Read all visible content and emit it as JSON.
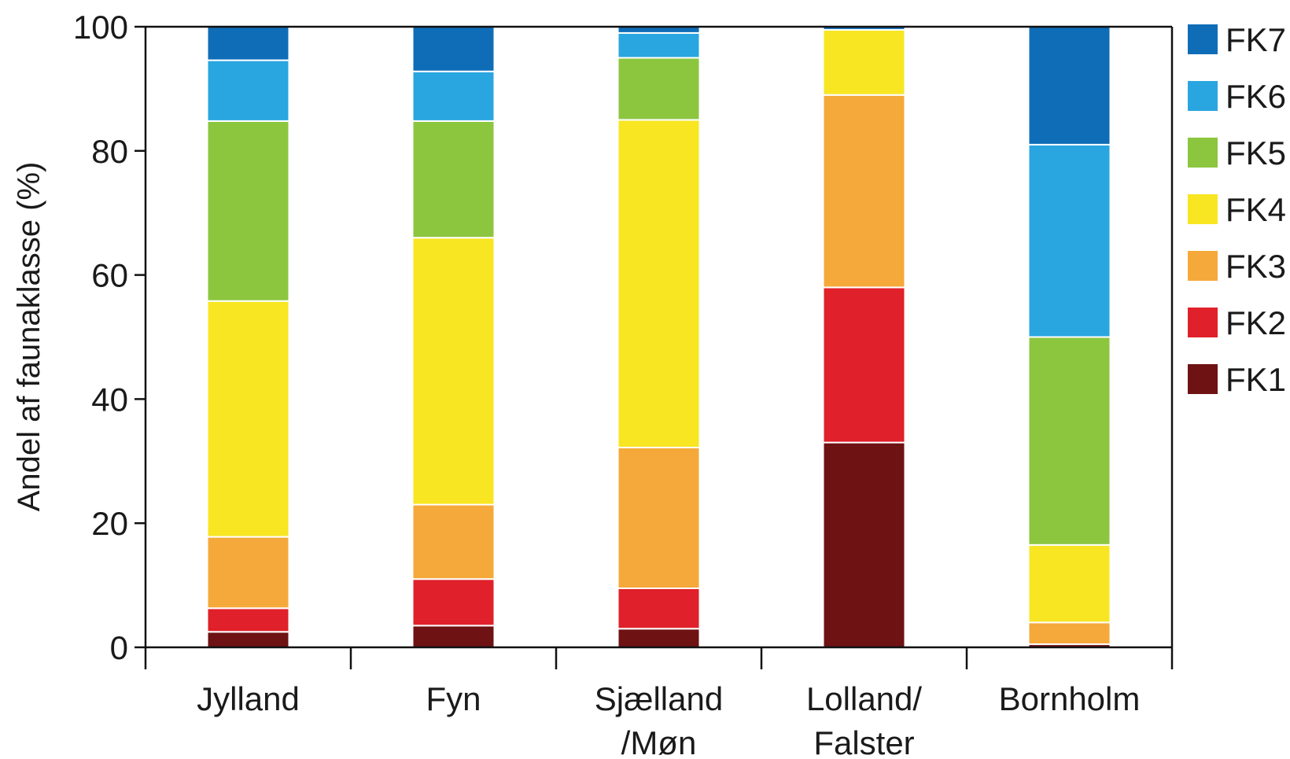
{
  "chart_data": {
    "type": "bar",
    "stacked": true,
    "title": "",
    "xlabel": "",
    "ylabel": "Andel af faunaklasse (%)",
    "ylim": [
      0,
      100
    ],
    "yticks": [
      0,
      20,
      40,
      60,
      80,
      100
    ],
    "grid": false,
    "legend_position": "right",
    "categories": [
      [
        "Jylland"
      ],
      [
        "Fyn"
      ],
      [
        "Sjælland",
        "/Møn"
      ],
      [
        "Lolland/",
        "Falster"
      ],
      [
        "Bornholm"
      ]
    ],
    "series": [
      {
        "name": "FK1",
        "color": "#6e1214",
        "values": [
          2.5,
          3.5,
          3.0,
          33.0,
          0.5
        ]
      },
      {
        "name": "FK2",
        "color": "#e0202a",
        "values": [
          3.8,
          7.5,
          6.5,
          25.0,
          0.0
        ]
      },
      {
        "name": "FK3",
        "color": "#f5a93a",
        "values": [
          11.5,
          12.0,
          22.7,
          31.0,
          3.5
        ]
      },
      {
        "name": "FK4",
        "color": "#f8e622",
        "values": [
          38.0,
          43.0,
          52.8,
          10.5,
          12.5
        ]
      },
      {
        "name": "FK5",
        "color": "#8cc63f",
        "values": [
          29.0,
          18.8,
          10.0,
          0.0,
          33.5
        ]
      },
      {
        "name": "FK6",
        "color": "#29a6e0",
        "values": [
          9.8,
          8.0,
          4.0,
          0.0,
          31.0
        ]
      },
      {
        "name": "FK7",
        "color": "#0f6db7",
        "values": [
          5.4,
          7.2,
          1.0,
          0.5,
          19.0
        ]
      }
    ]
  }
}
